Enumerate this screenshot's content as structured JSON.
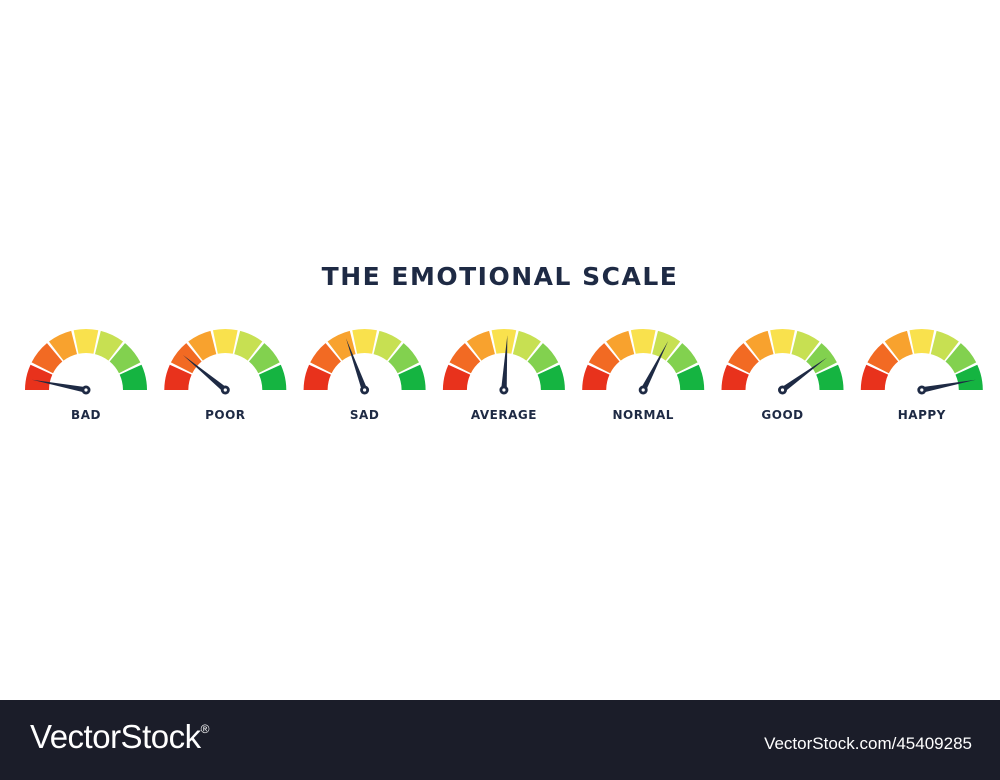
{
  "title": "THE EMOTIONAL SCALE",
  "segment_colors": [
    "#e8321c",
    "#f26a23",
    "#f8a22e",
    "#f9e14d",
    "#c7e052",
    "#82d14f",
    "#15b441"
  ],
  "needle_color": "#1e2a44",
  "gauges": [
    {
      "label": "BAD",
      "level": 0.06
    },
    {
      "label": "POOR",
      "level": 0.22
    },
    {
      "label": "SAD",
      "level": 0.39
    },
    {
      "label": "AVERAGE",
      "level": 0.52
    },
    {
      "label": "NORMAL",
      "level": 0.65
    },
    {
      "label": "GOOD",
      "level": 0.8
    },
    {
      "label": "HAPPY",
      "level": 0.94
    }
  ],
  "footer": {
    "brand": "VectorStock",
    "registered": "®",
    "image_ref": "VectorStock.com/45409285"
  }
}
